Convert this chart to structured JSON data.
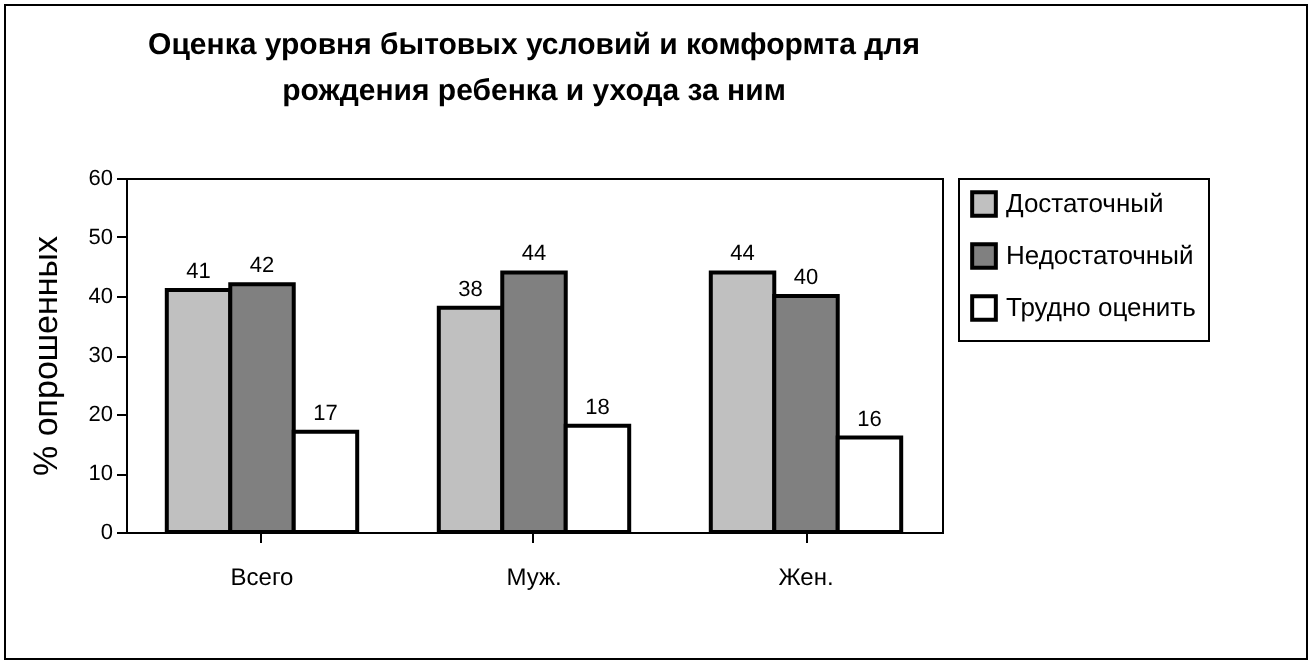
{
  "chart_data": {
    "type": "bar",
    "title": "Оценка уровня бытовых условий и комформта для рождения ребенка и ухода за ним",
    "ylabel": "% опрошенных",
    "categories": [
      "Всего",
      "Муж.",
      "Жен."
    ],
    "series": [
      {
        "name": "Достаточный",
        "color": "#c0c0c0",
        "values": [
          41,
          38,
          44
        ]
      },
      {
        "name": "Недостаточный",
        "color": "#808080",
        "values": [
          42,
          44,
          40
        ]
      },
      {
        "name": "Трудно оценить",
        "color": "#ffffff",
        "values": [
          17,
          18,
          16
        ]
      }
    ],
    "ylim": [
      0,
      60
    ],
    "yticks": [
      0,
      10,
      20,
      30,
      40,
      50,
      60
    ],
    "grid": false,
    "legend": "right",
    "data_labels": true
  }
}
